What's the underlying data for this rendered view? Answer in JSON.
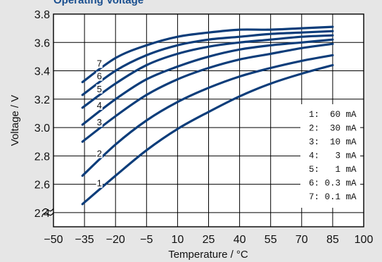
{
  "chart_data": {
    "type": "line",
    "title": "Operating Voltage",
    "xlabel": "Temperature / °C",
    "ylabel": "Voltage / V",
    "xlim": [
      -50,
      100
    ],
    "ylim": [
      2.3,
      3.8
    ],
    "x_ticks": [
      "−50",
      "−35",
      "−20",
      "−5",
      "10",
      "25",
      "40",
      "55",
      "70",
      "85",
      "100"
    ],
    "y_ticks": [
      "2.4",
      "2.6",
      "2.8",
      "3.0",
      "3.2",
      "3.4",
      "3.6",
      "3.8"
    ],
    "y_tick_values": [
      2.4,
      2.6,
      2.8,
      3.0,
      3.2,
      3.4,
      3.6,
      3.8
    ],
    "y_axis_break": true,
    "grid": true,
    "line_color": "#0d3d7a",
    "legend_position": "lower-right",
    "x": [
      -36,
      -20,
      -5,
      10,
      25,
      40,
      55,
      70,
      85
    ],
    "series": [
      {
        "label": "1",
        "legend": "1:  60 mA",
        "values": [
          2.46,
          2.66,
          2.84,
          2.99,
          3.11,
          3.22,
          3.31,
          3.38,
          3.44
        ]
      },
      {
        "label": "2",
        "legend": "2:  30 mA",
        "values": [
          2.66,
          2.88,
          3.05,
          3.18,
          3.28,
          3.36,
          3.42,
          3.47,
          3.51
        ]
      },
      {
        "label": "3",
        "legend": "3:  10 mA",
        "values": [
          2.9,
          3.08,
          3.23,
          3.34,
          3.42,
          3.48,
          3.52,
          3.56,
          3.59
        ]
      },
      {
        "label": "4",
        "legend": "4:   3 mA",
        "values": [
          3.02,
          3.2,
          3.34,
          3.43,
          3.5,
          3.55,
          3.58,
          3.6,
          3.62
        ]
      },
      {
        "label": "5",
        "legend": "5:   1 mA",
        "values": [
          3.14,
          3.31,
          3.44,
          3.52,
          3.57,
          3.6,
          3.62,
          3.64,
          3.65
        ]
      },
      {
        "label": "6",
        "legend": "6: 0.3 mA",
        "values": [
          3.23,
          3.4,
          3.51,
          3.58,
          3.62,
          3.64,
          3.66,
          3.67,
          3.68
        ]
      },
      {
        "label": "7",
        "legend": "7: 0.1 mA",
        "values": [
          3.32,
          3.49,
          3.58,
          3.64,
          3.67,
          3.69,
          3.69,
          3.7,
          3.71
        ]
      }
    ]
  }
}
